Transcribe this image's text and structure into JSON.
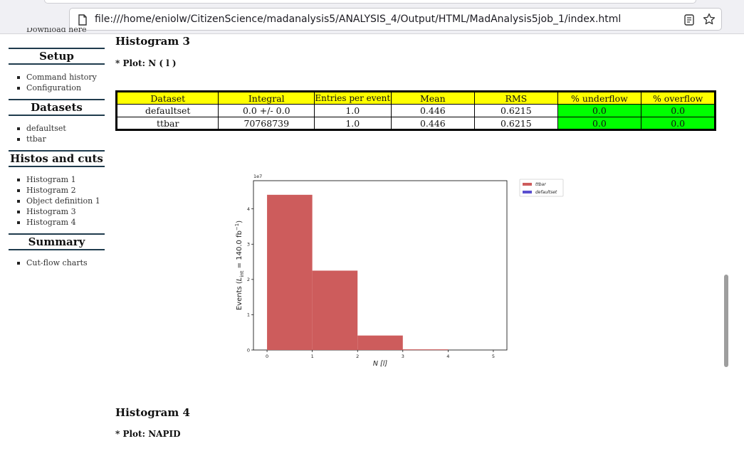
{
  "browser": {
    "url": "file:///home/eniolw/CitizenScience/madanalysis5/ANALYSIS_4/Output/HTML/MadAnalysis5job_1/index.html"
  },
  "sidebar": {
    "partial_item": "Download here",
    "sections": [
      {
        "title": "Setup",
        "items": [
          "Command history",
          "Configuration"
        ]
      },
      {
        "title": "Datasets",
        "items": [
          "defaultset",
          "ttbar"
        ]
      },
      {
        "title": "Histos and cuts",
        "items": [
          "Histogram 1",
          "Histogram 2",
          "Object definition 1",
          "Histogram 3",
          "Histogram 4"
        ]
      },
      {
        "title": "Summary",
        "items": [
          "Cut-flow charts"
        ]
      }
    ]
  },
  "main": {
    "hist3_title": "Histogram 3",
    "hist3_plot": "* Plot: N ( l )",
    "table": {
      "headers": [
        "Dataset",
        "Integral",
        "Entries per event",
        "Mean",
        "RMS",
        "% underflow",
        "% overflow"
      ],
      "rows": [
        [
          "defaultset",
          "0.0 +/- 0.0",
          "1.0",
          "0.446",
          "0.6215",
          "0.0",
          "0.0"
        ],
        [
          "ttbar",
          "70768739",
          "1.0",
          "0.446",
          "0.6215",
          "0.0",
          "0.0"
        ]
      ]
    },
    "hist4_title": "Histogram 4",
    "hist4_plot": "* Plot: NAPID"
  },
  "chart_data": {
    "type": "bar",
    "x_bins": [
      [
        0,
        1
      ],
      [
        1,
        2
      ],
      [
        2,
        3
      ],
      [
        3,
        4
      ],
      [
        4,
        5
      ]
    ],
    "series": [
      {
        "name": "ttbar",
        "color": "#cd5c5c",
        "values": [
          44000000.0,
          22500000.0,
          4100000.0,
          180000.0,
          0
        ]
      },
      {
        "name": "defaultset",
        "color": "#5a4fcf",
        "values": [
          0,
          0,
          0,
          0,
          0
        ]
      }
    ],
    "xlabel": "N [l]",
    "ylabel": "Events ( L_int = 140.0 fb^-1 )",
    "ylabel_main": "Events (",
    "ylabel_L": "L",
    "ylabel_sub": "int",
    "ylabel_mid": " = 140.0 fb",
    "ylabel_sup": "−1",
    "ylabel_end": ")",
    "scale_label": "1e7",
    "xlim": [
      -0.3,
      5.3
    ],
    "ylim": [
      0,
      48000000.0
    ],
    "xticks": [
      "0",
      "1",
      "2",
      "3",
      "4",
      "5"
    ],
    "yticks": [
      "0",
      "1",
      "2",
      "3",
      "4"
    ],
    "legend_position": "outside-top-right"
  }
}
